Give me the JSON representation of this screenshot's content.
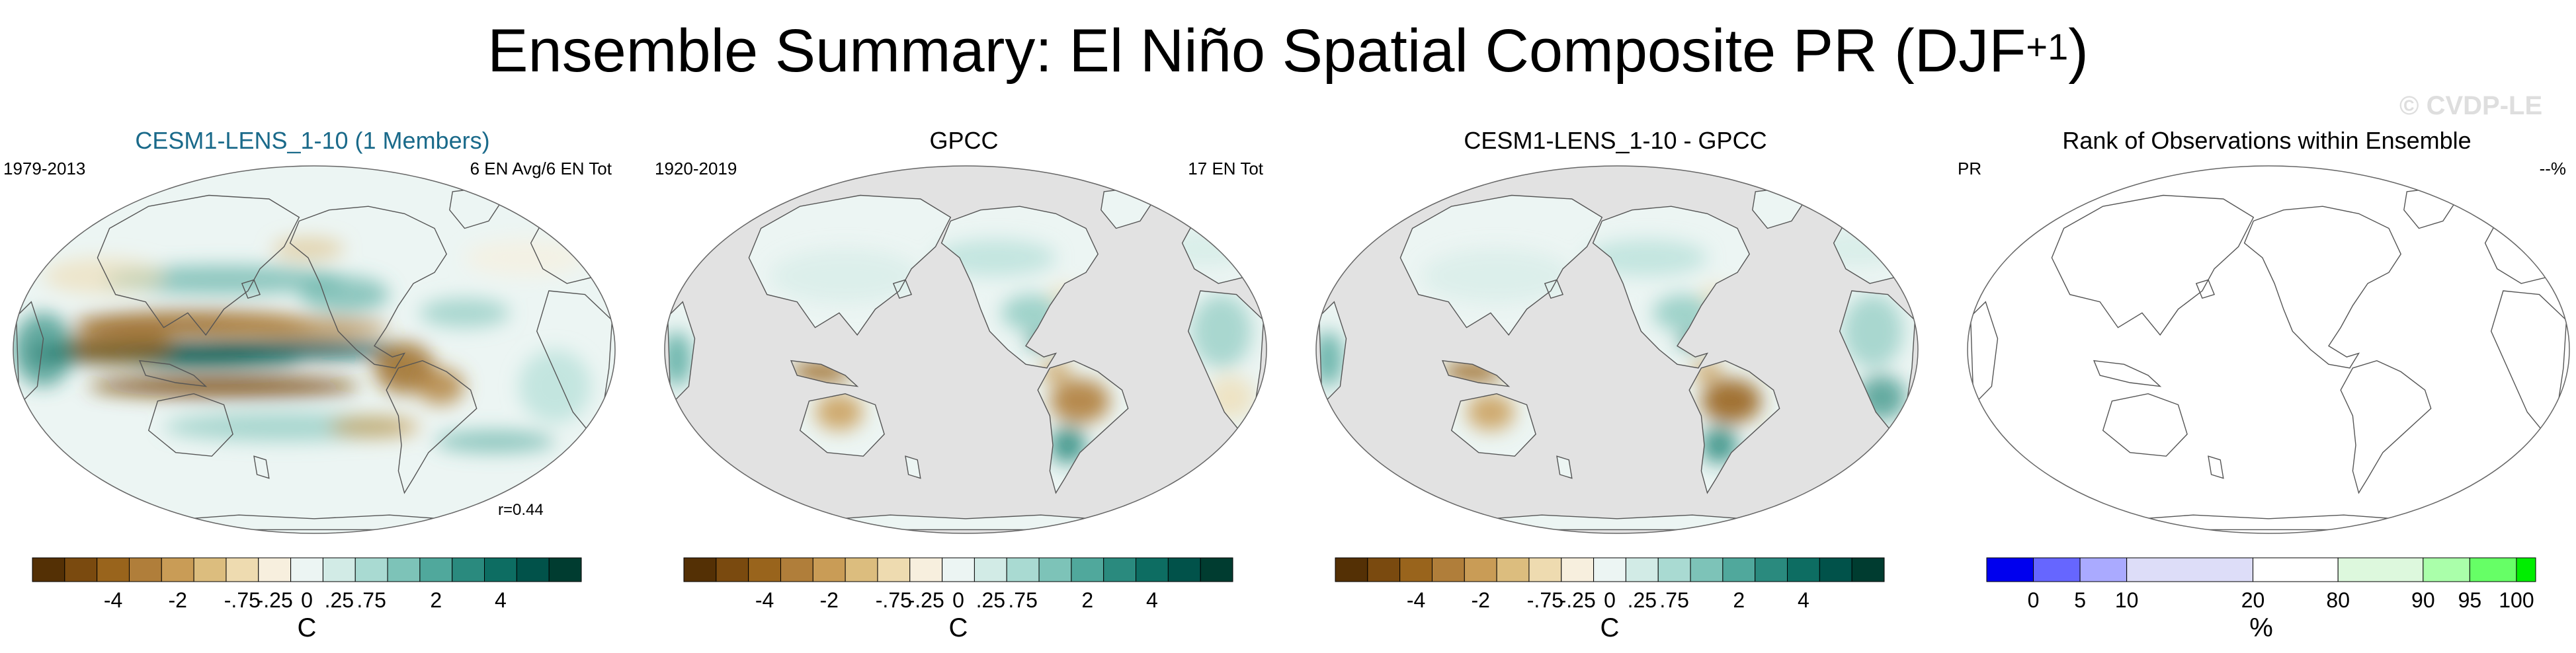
{
  "title": {
    "main": "Ensemble Summary: El Niño Spatial Composite PR (DJF",
    "superscript": "+1",
    "close": ")"
  },
  "watermark": "© CVDP-LE",
  "panels": [
    {
      "title": "CESM1-LENS_1-10 (1 Members)",
      "title_color": "#1a6a8a",
      "left_label": "1979-2013",
      "right_label": "6 EN Avg/6 EN Tot",
      "corr_label": "r=0.44",
      "map_type": "model",
      "colorbar": {
        "scale": "brown-teal",
        "labels": [
          "-4",
          "-2",
          "-.75",
          "-.25",
          "0",
          ".25",
          ".75",
          "2",
          "4"
        ],
        "unit": "C"
      }
    },
    {
      "title": "GPCC",
      "title_color": "#000000",
      "left_label": "1920-2019",
      "right_label": "17 EN Tot",
      "map_type": "obs",
      "colorbar": {
        "scale": "brown-teal",
        "labels": [
          "-4",
          "-2",
          "-.75",
          "-.25",
          "0",
          ".25",
          ".75",
          "2",
          "4"
        ],
        "unit": "C"
      }
    },
    {
      "title": "CESM1-LENS_1-10 - GPCC",
      "title_color": "#000000",
      "map_type": "diff",
      "colorbar": {
        "scale": "brown-teal",
        "labels": [
          "-4",
          "-2",
          "-.75",
          "-.25",
          "0",
          ".25",
          ".75",
          "2",
          "4"
        ],
        "unit": "C"
      }
    },
    {
      "title": "Rank of Observations within Ensemble",
      "title_color": "#000000",
      "left_label": "PR",
      "right_label": "--%",
      "map_type": "rank",
      "colorbar": {
        "scale": "rank",
        "labels": [
          "0",
          "5",
          "10",
          "20",
          "80",
          "90",
          "95",
          "100"
        ],
        "unit": "%"
      }
    }
  ],
  "colors": {
    "brown_teal": [
      "#543005",
      "#7a4a0f",
      "#99641c",
      "#b07e3a",
      "#c99c56",
      "#dcbd7e",
      "#eedbb0",
      "#f7efde",
      "#ecf5f3",
      "#d2ebe6",
      "#a9dad2",
      "#7dc3b8",
      "#50a89c",
      "#2a8a7e",
      "#0d6d62",
      "#01524a",
      "#003c30"
    ],
    "rank": [
      "#0000ee",
      "#6666ff",
      "#aaaaff",
      "#ddddf8",
      "#ffffff",
      "#ddf8dd",
      "#aaffaa",
      "#66ff66",
      "#00ee00"
    ],
    "missing": "#e2e2e2",
    "coast": "#555555"
  }
}
